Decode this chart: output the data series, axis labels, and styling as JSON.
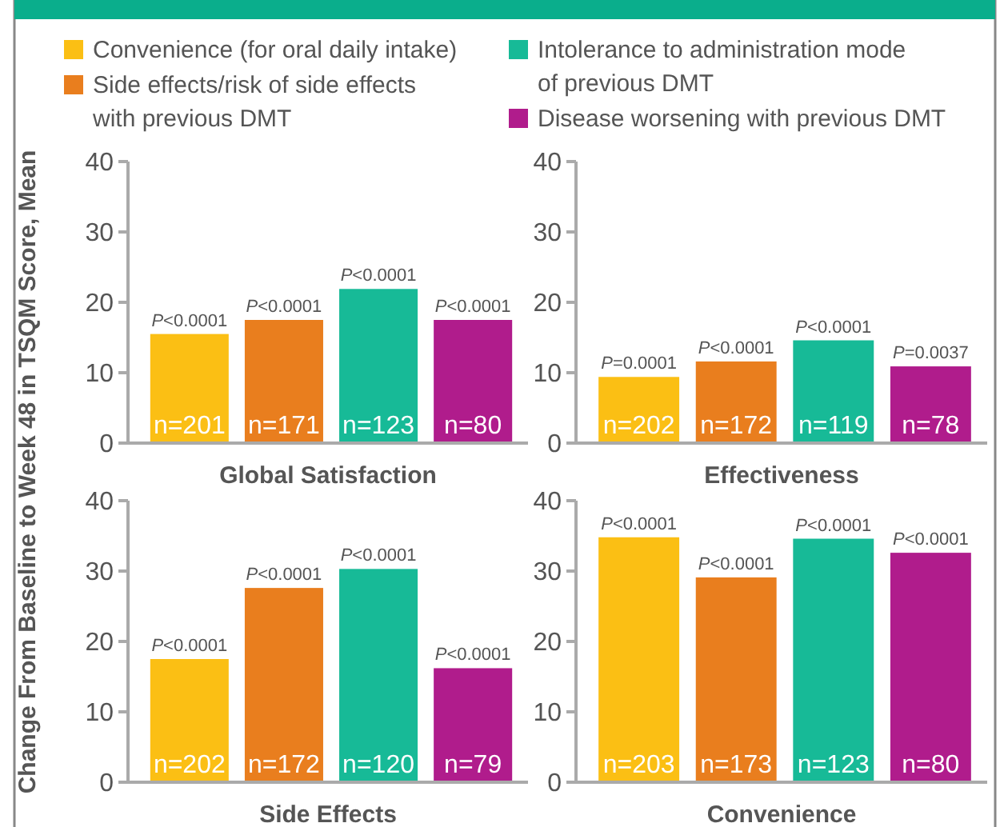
{
  "chart_data": [
    {
      "type": "bar",
      "xlabel": "Global Satisfaction",
      "ylabel": "Change From Baseline to Week 48 in TSQM Score, Mean",
      "categories": [
        null
      ],
      "ylim": [
        0,
        40
      ],
      "yticks": [
        0,
        10,
        20,
        30,
        40
      ],
      "legend": "top",
      "annotations": [
        {
          "text": "P<0.0001",
          "y": 15.5
        },
        {
          "text": "P<0.0001",
          "y": 17.5
        },
        {
          "text": "P<0.0001",
          "y": 21.9
        },
        {
          "text": "P<0.0001",
          "y": 17.5
        },
        "n=201",
        "n=171",
        "n=123",
        "n=80"
      ],
      "series": [
        {
          "name": "Convenience (for oral daily intake)",
          "color": "#fbbf14",
          "values": [
            15.5
          ]
        },
        {
          "name": "Side effects/risk of side effects with previous DMT",
          "color": "#e97e1e",
          "values": [
            17.5
          ]
        },
        {
          "name": "Intolerance to administration mode of previous DMT",
          "color": "#17ba97",
          "values": [
            21.9
          ]
        },
        {
          "name": "Disease worsening with previous DMT",
          "color": "#b01c8c",
          "values": [
            17.5
          ]
        }
      ]
    },
    {
      "type": "bar",
      "xlabel": "Effectiveness",
      "categories": [
        null
      ],
      "ylim": [
        0,
        40
      ],
      "yticks": [
        0,
        10,
        20,
        30,
        40
      ],
      "annotations": [
        {
          "text": "P=0.0001",
          "y": 9.4
        },
        {
          "text": "P<0.0001",
          "y": 11.6
        },
        {
          "text": "P<0.0001",
          "y": 14.6
        },
        {
          "text": "P=0.0037",
          "y": 10.9
        },
        "n=202",
        "n=172",
        "n=119",
        "n=78"
      ],
      "series": [
        {
          "color": "#fbbf14",
          "values": [
            9.4
          ]
        },
        {
          "color": "#e97e1e",
          "values": [
            11.6
          ]
        },
        {
          "color": "#17ba97",
          "values": [
            14.6
          ]
        },
        {
          "color": "#b01c8c",
          "values": [
            10.9
          ]
        }
      ]
    },
    {
      "type": "bar",
      "xlabel": "Side Effects",
      "categories": [
        null
      ],
      "ylim": [
        0,
        40
      ],
      "yticks": [
        0,
        10,
        20,
        30,
        40
      ],
      "annotations": [
        {
          "text": "P<0.0001",
          "y": 17.5
        },
        {
          "text": "P<0.0001",
          "y": 27.6
        },
        {
          "text": "P<0.0001",
          "y": 30.3
        },
        {
          "text": "P<0.0001",
          "y": 16.2
        },
        "n=202",
        "n=172",
        "n=120",
        "n=79"
      ],
      "series": [
        {
          "color": "#fbbf14",
          "values": [
            17.5
          ]
        },
        {
          "color": "#e97e1e",
          "values": [
            27.6
          ]
        },
        {
          "color": "#17ba97",
          "values": [
            30.3
          ]
        },
        {
          "color": "#b01c8c",
          "values": [
            16.2
          ]
        }
      ]
    },
    {
      "type": "bar",
      "xlabel": "Convenience",
      "categories": [
        null
      ],
      "ylim": [
        0,
        40
      ],
      "yticks": [
        0,
        10,
        20,
        30,
        40
      ],
      "annotations": [
        {
          "text": "P<0.0001",
          "y": 34.8
        },
        {
          "text": "P<0.0001",
          "y": 29.1
        },
        {
          "text": "P<0.0001",
          "y": 34.6
        },
        {
          "text": "P<0.0001",
          "y": 32.6
        },
        "n=203",
        "n=173",
        "n=123",
        "n=80"
      ],
      "series": [
        {
          "color": "#fbbf14",
          "values": [
            34.8
          ]
        },
        {
          "color": "#e97e1e",
          "values": [
            29.1
          ]
        },
        {
          "color": "#17ba97",
          "values": [
            34.6
          ]
        },
        {
          "color": "#b01c8c",
          "values": [
            32.6
          ]
        }
      ]
    }
  ]
}
